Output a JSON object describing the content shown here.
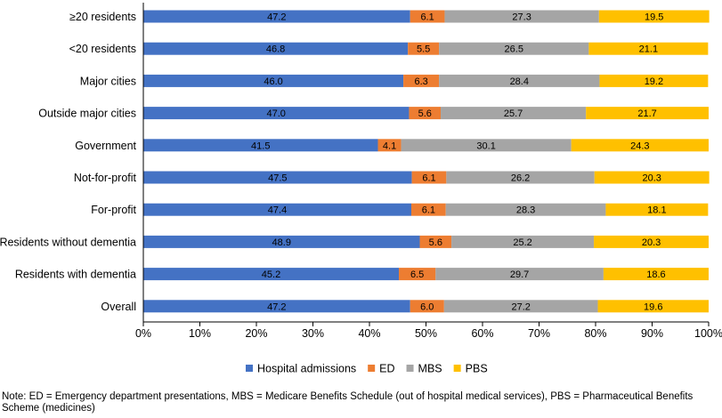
{
  "chart_data": {
    "type": "bar",
    "orientation": "horizontal",
    "stacked": true,
    "categories": [
      "≥20 residents",
      "<20 residents",
      "Major cities",
      "Outside major cities",
      "Government",
      "Not-for-profit",
      "For-profit",
      "Residents without dementia",
      "Residents with dementia",
      "Overall"
    ],
    "series": [
      {
        "name": "Hospital admissions",
        "color": "#4472C4",
        "values": [
          47.2,
          46.8,
          46.0,
          47.0,
          41.5,
          47.5,
          47.4,
          48.9,
          45.2,
          47.2
        ],
        "labels": [
          "47.2",
          "46.8",
          "46.0",
          "47.0",
          "41.5",
          "47.5",
          "47.4",
          "48.9",
          "45.2",
          "47.2"
        ]
      },
      {
        "name": "ED",
        "color": "#ED7D31",
        "values": [
          6.1,
          5.5,
          6.3,
          5.6,
          4.1,
          6.1,
          6.1,
          5.6,
          6.5,
          6.0
        ],
        "labels": [
          "6.1",
          "5.5",
          "6.3",
          "5.6",
          "4.1",
          "6.1",
          "6.1",
          "5.6",
          "6.5",
          "6.0"
        ]
      },
      {
        "name": "MBS",
        "color": "#A5A5A5",
        "values": [
          27.3,
          26.5,
          28.4,
          25.7,
          30.1,
          26.2,
          28.3,
          25.2,
          29.7,
          27.2
        ],
        "labels": [
          "27.3",
          "26.5",
          "28.4",
          "25.7",
          "30.1",
          "26.2",
          "28.3",
          "25.2",
          "29.7",
          "27.2"
        ]
      },
      {
        "name": "PBS",
        "color": "#FFC000",
        "values": [
          19.5,
          21.1,
          19.2,
          21.7,
          24.3,
          20.3,
          18.1,
          20.3,
          18.6,
          19.6
        ],
        "labels": [
          "19.5",
          "21.1",
          "19.2",
          "21.7",
          "24.3",
          "20.3",
          "18.1",
          "20.3",
          "18.6",
          "19.6"
        ]
      }
    ],
    "xlim": [
      0,
      100
    ],
    "xticks": [
      "0%",
      "10%",
      "20%",
      "30%",
      "40%",
      "50%",
      "60%",
      "70%",
      "80%",
      "90%",
      "100%"
    ],
    "grid": false,
    "legend": "bottom",
    "title": "",
    "xlabel": "",
    "ylabel": ""
  },
  "note": "Note: ED = Emergency department presentations, MBS = Medicare Benefits Schedule (out of hospital medical services), PBS = Pharmaceutical Benefits Scheme (medicines)"
}
